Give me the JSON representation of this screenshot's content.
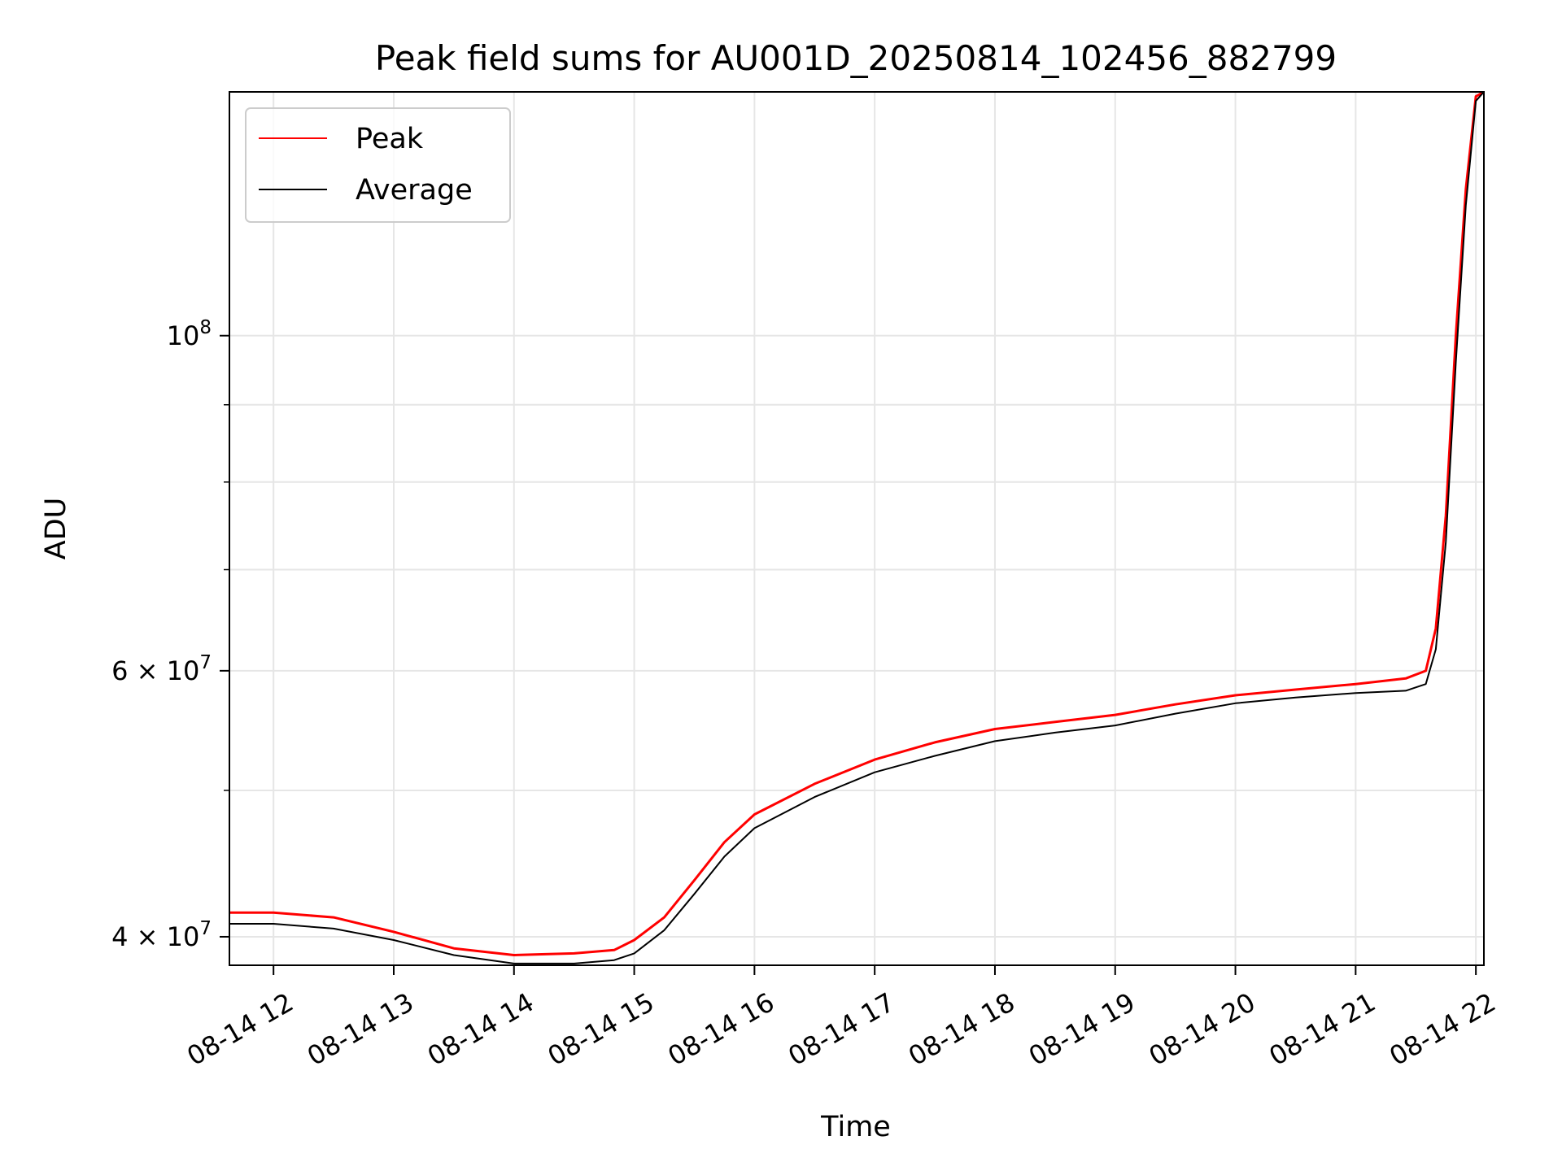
{
  "chart_data": {
    "type": "line",
    "title": "Peak field sums for AU001D_20250814_102456_882799",
    "xlabel": "Time",
    "ylabel": "ADU",
    "y_scale": "log",
    "ylim": [
      38300000,
      145000000
    ],
    "xlim": [
      "08-14 11:38",
      "08-14 22:04"
    ],
    "grid": true,
    "legend_position": "top-left",
    "x_ticks": [
      {
        "value": "08-14 12:00",
        "label": "08-14 12"
      },
      {
        "value": "08-14 13:00",
        "label": "08-14 13"
      },
      {
        "value": "08-14 14:00",
        "label": "08-14 14"
      },
      {
        "value": "08-14 15:00",
        "label": "08-14 15"
      },
      {
        "value": "08-14 16:00",
        "label": "08-14 16"
      },
      {
        "value": "08-14 17:00",
        "label": "08-14 17"
      },
      {
        "value": "08-14 18:00",
        "label": "08-14 18"
      },
      {
        "value": "08-14 19:00",
        "label": "08-14 19"
      },
      {
        "value": "08-14 20:00",
        "label": "08-14 20"
      },
      {
        "value": "08-14 21:00",
        "label": "08-14 21"
      },
      {
        "value": "08-14 22:00",
        "label": "08-14 22"
      }
    ],
    "y_major_ticks": [
      {
        "value": 40000000,
        "label": "4 × 10",
        "exp": "7"
      },
      {
        "value": 60000000,
        "label": "6 × 10",
        "exp": "7"
      },
      {
        "value": 100000000,
        "label": "10",
        "exp": "8"
      }
    ],
    "y_minor_ticks": [
      50000000,
      70000000,
      80000000,
      90000000
    ],
    "series": [
      {
        "name": "Peak",
        "color": "#ff0000",
        "x": [
          "08-14 11:38",
          "08-14 12:00",
          "08-14 12:30",
          "08-14 13:00",
          "08-14 13:30",
          "08-14 14:00",
          "08-14 14:30",
          "08-14 14:50",
          "08-14 15:00",
          "08-14 15:15",
          "08-14 15:30",
          "08-14 15:45",
          "08-14 16:00",
          "08-14 16:30",
          "08-14 17:00",
          "08-14 17:30",
          "08-14 18:00",
          "08-14 18:30",
          "08-14 19:00",
          "08-14 19:30",
          "08-14 20:00",
          "08-14 20:30",
          "08-14 21:00",
          "08-14 21:25",
          "08-14 21:35",
          "08-14 21:40",
          "08-14 21:45",
          "08-14 21:50",
          "08-14 21:55",
          "08-14 22:00",
          "08-14 22:04"
        ],
        "y": [
          41500000,
          41500000,
          41200000,
          40300000,
          39300000,
          38900000,
          39000000,
          39200000,
          39800000,
          41200000,
          43600000,
          46200000,
          48200000,
          50500000,
          52400000,
          53800000,
          54900000,
          55500000,
          56100000,
          57000000,
          57800000,
          58300000,
          58800000,
          59300000,
          60000000,
          64000000,
          76000000,
          100000000,
          125000000,
          144000000,
          145000000
        ]
      },
      {
        "name": "Average",
        "color": "#000000",
        "x": [
          "08-14 11:38",
          "08-14 12:00",
          "08-14 12:30",
          "08-14 13:00",
          "08-14 13:30",
          "08-14 14:00",
          "08-14 14:30",
          "08-14 14:50",
          "08-14 15:00",
          "08-14 15:15",
          "08-14 15:30",
          "08-14 15:45",
          "08-14 16:00",
          "08-14 16:30",
          "08-14 17:00",
          "08-14 17:30",
          "08-14 18:00",
          "08-14 18:30",
          "08-14 19:00",
          "08-14 19:30",
          "08-14 20:00",
          "08-14 20:30",
          "08-14 21:00",
          "08-14 21:25",
          "08-14 21:35",
          "08-14 21:40",
          "08-14 21:45",
          "08-14 21:50",
          "08-14 21:55",
          "08-14 22:00",
          "08-14 22:04"
        ],
        "y": [
          40800000,
          40800000,
          40500000,
          39800000,
          38900000,
          38400000,
          38400000,
          38600000,
          39000000,
          40400000,
          42700000,
          45200000,
          47200000,
          49500000,
          51400000,
          52700000,
          53900000,
          54600000,
          55200000,
          56200000,
          57100000,
          57600000,
          58000000,
          58200000,
          58800000,
          62000000,
          73000000,
          96000000,
          122000000,
          143000000,
          145000000
        ]
      }
    ]
  }
}
